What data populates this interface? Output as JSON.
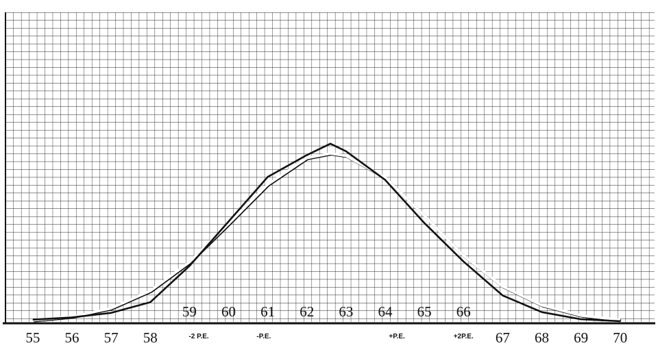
{
  "chart_data": {
    "type": "line",
    "x": [
      55,
      56,
      57,
      58,
      59,
      60,
      61,
      62,
      62.6,
      63,
      64,
      65,
      66,
      67,
      68,
      69,
      70
    ],
    "series": [
      {
        "color": "#111111",
        "values": [
          0.3,
          0.6,
          1.2,
          2.6,
          7.4,
          13.3,
          19.2,
          22.1,
          23.6,
          22.6,
          18.8,
          13.1,
          8.0,
          3.5,
          1.3,
          0.35,
          0.1
        ]
      },
      {
        "color": "#ffffff",
        "values": [
          0.22,
          0.69,
          1.8,
          4.1,
          7.9,
          13.0,
          18.2,
          21.7,
          22.3,
          22.0,
          19.1,
          14.1,
          8.8,
          4.7,
          2.2,
          0.84,
          0.28
        ]
      }
    ],
    "xlim": [
      54.25,
      70.88
    ],
    "xticks": [
      55,
      56,
      57,
      58,
      59,
      60,
      61,
      62,
      63,
      64,
      65,
      66,
      67,
      68,
      69,
      70
    ],
    "ylim": [
      0,
      41
    ],
    "annotations": [
      {
        "text": "-2 P.E.",
        "x": 59.24
      },
      {
        "text": "-P.E.",
        "x": 60.9
      },
      {
        "text": "+P.E.",
        "x": 64.3
      },
      {
        "text": "+2P.E.",
        "x": 66.0
      }
    ]
  }
}
